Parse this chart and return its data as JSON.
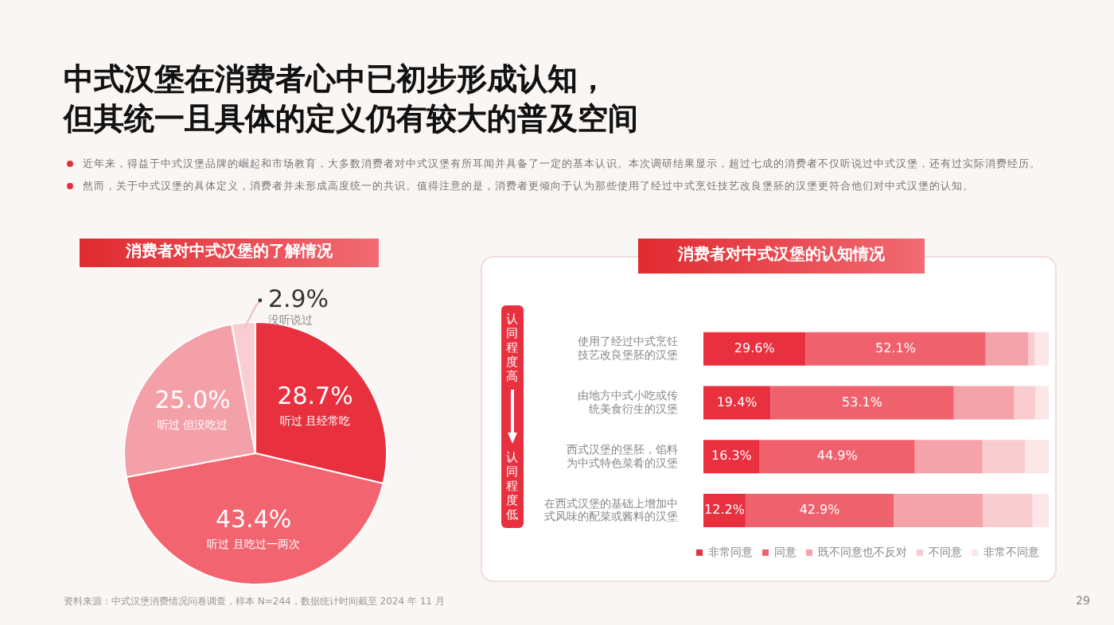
{
  "chart_data": [
    {
      "type": "other",
      "title": "中式汉堡在消费者心中已初步形成认知，",
      "subtitle": "但其统一且具体的定义仍有较大的普及空间",
      "annotations": [
        "近年来，得益于中式汉堡品牌的崛起和市场教育，大多数消费者对中式汉堡有所耳闻并具备了一定的基本认识。本次调研结果显示，超过七成的消费者不仅听说过中式汉堡，还有过实际消费经历。",
        "然而，关于中式汉堡的具体定义，消费者并未形成高度统一的共识。值得注意的是，消费者更倾向于认为那些使用了经过中式烹饪技艺改良堡胚的汉堡更符合他们对中式汉堡的认知。"
      ]
    },
    {
      "type": "pie",
      "title": "消费者对中式汉堡的了解情况",
      "categories": [
        "听过 且经常吃",
        "听过 且吃过一两次",
        "听过 但没吃过",
        "没听说过"
      ],
      "values": [
        28.7,
        43.4,
        25.0,
        2.9
      ],
      "value_labels": [
        "28.7%",
        "43.4%",
        "25.0%",
        "2.9%"
      ],
      "colors": [
        "#e8303f",
        "#f16470",
        "#f4a0a8",
        "#f9cdd1"
      ],
      "annotations": [
        "资料来源：中式汉堡消费情况问卷调查，样本 N=244，数据统计时间截至 2024 年 11 月"
      ]
    },
    {
      "type": "bar",
      "title": "消费者对中式汉堡的认知情况",
      "orientation": "horizontal",
      "stacked": true,
      "categories": [
        "使用了经过中式烹饪技艺改良堡胚的汉堡",
        "由地方中式小吃或传统美食衍生的汉堡",
        "西式汉堡的堡胚，馅料为中式特色菜肴的汉堡",
        "在西式汉堡的基础上增加中式风味的配菜或酱料的汉堡"
      ],
      "xlim": [
        0,
        100
      ],
      "tick_labels": "y",
      "legend": "bottom",
      "series": [
        {
          "name": "非常同意",
          "color": "#e8303f",
          "values": [
            29.6,
            19.4,
            16.3,
            12.2
          ],
          "value_labels": [
            "29.6%",
            "19.4%",
            "16.3%",
            "12.2%"
          ]
        },
        {
          "name": "同意",
          "color": "#f0616e",
          "values": [
            52.1,
            53.1,
            44.9,
            42.9
          ],
          "value_labels": [
            "52.1%",
            "53.1%",
            "44.9%",
            "42.9%"
          ]
        },
        {
          "name": "既不同意也不反对",
          "color": "#f5a3aa",
          "values": [
            12.3,
            17.5,
            19.6,
            25.8
          ]
        },
        {
          "name": "不同意",
          "color": "#f9ccd0",
          "values": [
            1.9,
            6.1,
            12.3,
            14.4
          ]
        },
        {
          "name": "非常不同意",
          "color": "#fce6e8",
          "values": [
            4.1,
            3.9,
            6.9,
            4.7
          ]
        }
      ],
      "annotations": [
        "认同程度高",
        "认同程度低",
        "29"
      ]
    }
  ]
}
